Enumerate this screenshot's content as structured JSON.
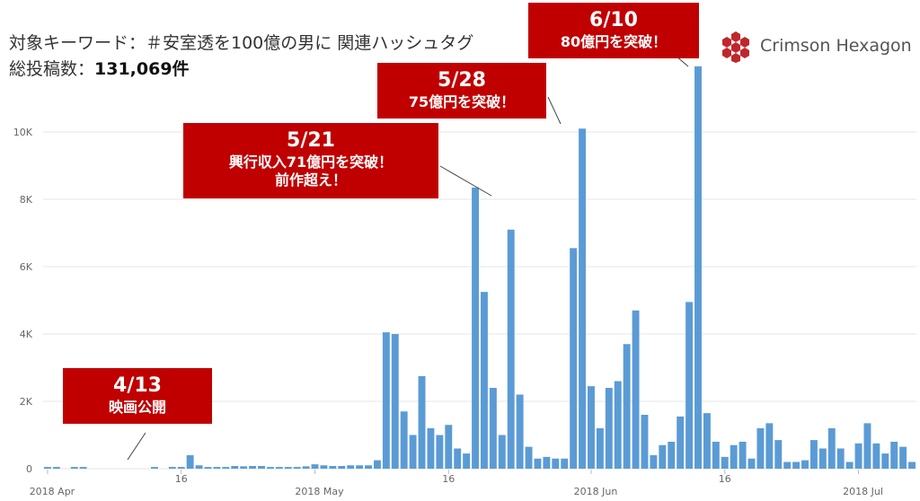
{
  "header": {
    "title": "対象キーワード：＃安室透を100億の男に 関連ハッシュタグ",
    "total_label": "総投稿数：",
    "total_value": "131,069件"
  },
  "logo": {
    "name": "Crimson Hexagon",
    "color": "#c0272d"
  },
  "callouts": [
    {
      "date": "4/13",
      "lines": [
        "映画公開"
      ]
    },
    {
      "date": "5/21",
      "lines": [
        "興行収入71億円を突破！",
        "前作超え！"
      ]
    },
    {
      "date": "5/28",
      "lines": [
        "75億円を突破！"
      ]
    },
    {
      "date": "6/10",
      "lines": [
        "80億円を突破！"
      ]
    }
  ],
  "colors": {
    "bar": "#5b9bd5",
    "callout": "#c00000",
    "grid": "#e6e6e6"
  },
  "chart_data": {
    "type": "bar",
    "start_date": "2018-04-01",
    "end_date": "2018-07-06",
    "ylim": [
      0,
      12000
    ],
    "y_ticks": [
      0,
      2000,
      4000,
      6000,
      8000,
      10000
    ],
    "y_tick_labels": [
      "0",
      "2K",
      "4K",
      "6K",
      "8K",
      "10K"
    ],
    "x_tick_labels": [
      {
        "date": "2018-04-01",
        "label": "2018 Apr"
      },
      {
        "date": "2018-04-16",
        "label": "16"
      },
      {
        "date": "2018-05-01",
        "label": "2018 May"
      },
      {
        "date": "2018-05-16",
        "label": "16"
      },
      {
        "date": "2018-06-01",
        "label": "2018 Jun"
      },
      {
        "date": "2018-06-16",
        "label": "16"
      },
      {
        "date": "2018-07-01",
        "label": "2018 Jul"
      }
    ],
    "values": [
      50,
      50,
      0,
      50,
      50,
      0,
      0,
      0,
      0,
      0,
      0,
      0,
      50,
      0,
      50,
      50,
      400,
      100,
      50,
      50,
      50,
      80,
      70,
      80,
      80,
      50,
      50,
      50,
      50,
      70,
      130,
      100,
      80,
      80,
      100,
      100,
      100,
      250,
      4050,
      4000,
      1700,
      1000,
      2750,
      1200,
      1000,
      1300,
      600,
      450,
      8350,
      5250,
      2400,
      1000,
      7100,
      2200,
      650,
      300,
      350,
      300,
      300,
      6550,
      10100,
      2450,
      1200,
      2400,
      2600,
      3700,
      4700,
      1600,
      400,
      700,
      800,
      1550,
      4950,
      11950,
      1650,
      800,
      350,
      700,
      800,
      300,
      1200,
      1350,
      850,
      200,
      200,
      250,
      850,
      600,
      1200,
      600,
      200,
      750,
      1350,
      750,
      450,
      800,
      650,
      200
    ]
  }
}
